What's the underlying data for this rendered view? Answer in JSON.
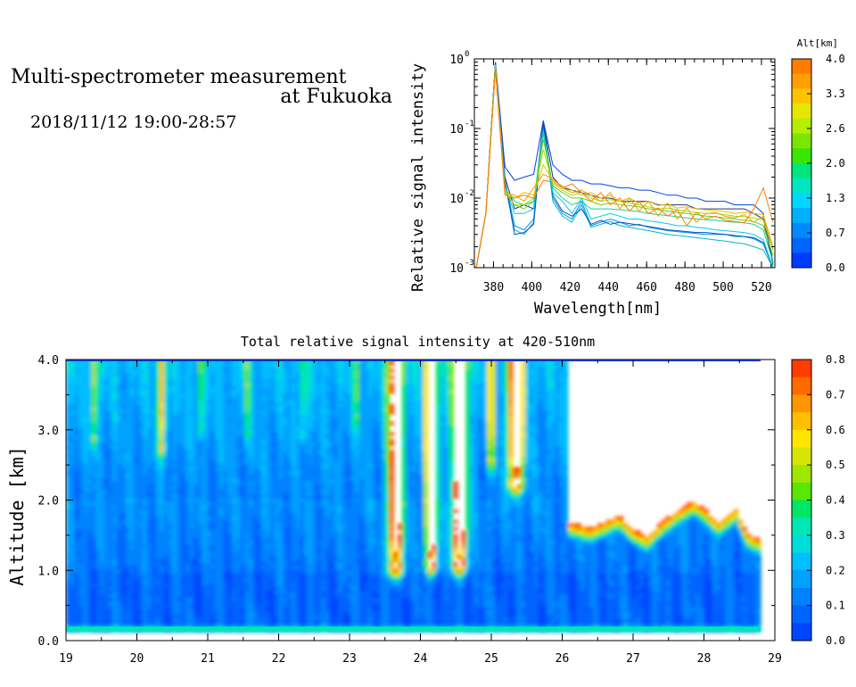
{
  "header": {
    "title_line1": "Multi-spectrometer measurement",
    "title_line2": "at Fukuoka",
    "datetime": "2018/11/12 19:00-28:57"
  },
  "chart_data": [
    {
      "type": "line",
      "xlabel": "Wavelength[nm]",
      "ylabel": "Relative signal intensity",
      "xlim": [
        370,
        527
      ],
      "ylim": [
        0.001,
        1
      ],
      "yscale": "log",
      "x_ticks": [
        "380",
        "400",
        "420",
        "440",
        "460",
        "480",
        "500",
        "520"
      ],
      "y_ticks": [
        "10",
        "10",
        "10",
        "10"
      ],
      "y_tick_exponents": [
        "0",
        "-1",
        "-2",
        "-3"
      ],
      "colorbar": {
        "title": "Alt[km]",
        "labels": [
          "4.0",
          "3.3",
          "2.6",
          "2.0",
          "1.3",
          "0.7",
          "0.0"
        ],
        "colors": [
          "#ff7c00",
          "#ffa000",
          "#ffc400",
          "#e6e600",
          "#b4ee00",
          "#7ae600",
          "#38e600",
          "#00e67a",
          "#00e6c0",
          "#00d6ff",
          "#00b0ff",
          "#008aff",
          "#0064ff",
          "#003cff"
        ]
      },
      "x": [
        371,
        376,
        381,
        386,
        391,
        396,
        401,
        406,
        411,
        416,
        421,
        426,
        431,
        436,
        441,
        446,
        451,
        456,
        461,
        466,
        471,
        476,
        481,
        486,
        491,
        496,
        501,
        506,
        511,
        516,
        521,
        526
      ],
      "series": [
        {
          "color": "#0044ee",
          "values": [
            0.001,
            0.006,
            0.9,
            0.028,
            0.018,
            0.02,
            0.022,
            0.13,
            0.03,
            0.022,
            0.018,
            0.018,
            0.016,
            0.016,
            0.015,
            0.014,
            0.014,
            0.013,
            0.013,
            0.012,
            0.011,
            0.011,
            0.01,
            0.01,
            0.009,
            0.009,
            0.009,
            0.008,
            0.008,
            0.008,
            0.006,
            0.0012
          ]
        },
        {
          "color": "#223388",
          "values": [
            0.001,
            0.006,
            0.9,
            0.02,
            0.007,
            0.008,
            0.007,
            0.125,
            0.02,
            0.014,
            0.013,
            0.012,
            0.011,
            0.01,
            0.01,
            0.009,
            0.009,
            0.009,
            0.009,
            0.008,
            0.008,
            0.008,
            0.008,
            0.007,
            0.007,
            0.007,
            0.007,
            0.007,
            0.007,
            0.006,
            0.005,
            0.0011
          ]
        },
        {
          "color": "#0090f0",
          "values": [
            0.001,
            0.006,
            0.85,
            0.018,
            0.004,
            0.0035,
            0.005,
            0.115,
            0.01,
            0.006,
            0.005,
            0.009,
            0.004,
            0.0045,
            0.005,
            0.0045,
            0.004,
            0.0042,
            0.0038,
            0.0036,
            0.0034,
            0.0033,
            0.0032,
            0.0031,
            0.003,
            0.003,
            0.003,
            0.0028,
            0.0028,
            0.0026,
            0.0022,
            0.001
          ]
        },
        {
          "color": "#00b8c8",
          "values": [
            0.001,
            0.006,
            0.85,
            0.016,
            0.0035,
            0.003,
            0.0045,
            0.11,
            0.009,
            0.0055,
            0.0045,
            0.008,
            0.0038,
            0.0042,
            0.0046,
            0.004,
            0.0038,
            0.0036,
            0.0034,
            0.0032,
            0.003,
            0.0029,
            0.0028,
            0.0027,
            0.0026,
            0.0025,
            0.0024,
            0.0023,
            0.0022,
            0.002,
            0.0018,
            0.001
          ]
        },
        {
          "color": "#0050c8",
          "values": [
            0.001,
            0.006,
            0.88,
            0.018,
            0.003,
            0.0032,
            0.0042,
            0.12,
            0.011,
            0.0065,
            0.0055,
            0.007,
            0.0042,
            0.0048,
            0.0042,
            0.0045,
            0.0043,
            0.0041,
            0.0039,
            0.0037,
            0.0035,
            0.0034,
            0.0033,
            0.0032,
            0.0032,
            0.0031,
            0.003,
            0.0029,
            0.0028,
            0.0027,
            0.0023,
            0.001
          ]
        },
        {
          "color": "#00ccee",
          "values": [
            0.001,
            0.006,
            0.8,
            0.015,
            0.006,
            0.006,
            0.007,
            0.085,
            0.012,
            0.009,
            0.006,
            0.01,
            0.005,
            0.0055,
            0.006,
            0.0055,
            0.005,
            0.005,
            0.0047,
            0.0045,
            0.0043,
            0.004,
            0.004,
            0.0038,
            0.0037,
            0.0035,
            0.0034,
            0.0033,
            0.0032,
            0.003,
            0.0025,
            0.001
          ]
        },
        {
          "color": "#20d090",
          "values": [
            0.001,
            0.006,
            0.82,
            0.014,
            0.009,
            0.008,
            0.009,
            0.095,
            0.014,
            0.01,
            0.008,
            0.009,
            0.007,
            0.007,
            0.007,
            0.0068,
            0.0066,
            0.0064,
            0.006,
            0.0058,
            0.0056,
            0.0054,
            0.0052,
            0.005,
            0.0049,
            0.0048,
            0.0046,
            0.0045,
            0.0044,
            0.0042,
            0.0035,
            0.0012
          ]
        },
        {
          "color": "#60d020",
          "values": [
            0.001,
            0.006,
            0.8,
            0.013,
            0.008,
            0.007,
            0.009,
            0.07,
            0.015,
            0.012,
            0.01,
            0.01,
            0.009,
            0.008,
            0.0085,
            0.008,
            0.0078,
            0.0075,
            0.007,
            0.0068,
            0.0065,
            0.0062,
            0.006,
            0.0058,
            0.0055,
            0.0054,
            0.0052,
            0.005,
            0.0048,
            0.0046,
            0.004,
            0.0015
          ]
        },
        {
          "color": "#a8d800",
          "values": [
            0.001,
            0.006,
            0.78,
            0.012,
            0.008,
            0.008,
            0.01,
            0.05,
            0.016,
            0.013,
            0.011,
            0.012,
            0.01,
            0.009,
            0.0095,
            0.009,
            0.0085,
            0.008,
            0.0075,
            0.007,
            0.0072,
            0.0068,
            0.0065,
            0.0062,
            0.006,
            0.006,
            0.0058,
            0.0055,
            0.0054,
            0.0052,
            0.0048,
            0.0018
          ]
        },
        {
          "color": "#e0c000",
          "values": [
            0.001,
            0.006,
            0.75,
            0.013,
            0.01,
            0.012,
            0.011,
            0.03,
            0.018,
            0.015,
            0.013,
            0.011,
            0.012,
            0.01,
            0.011,
            0.009,
            0.01,
            0.0085,
            0.009,
            0.0078,
            0.0082,
            0.0072,
            0.0075,
            0.007,
            0.0068,
            0.0066,
            0.0064,
            0.006,
            0.0062,
            0.006,
            0.0058,
            0.002
          ]
        },
        {
          "color": "#f0a000",
          "values": [
            0.001,
            0.006,
            0.72,
            0.012,
            0.011,
            0.009,
            0.014,
            0.022,
            0.019,
            0.014,
            0.012,
            0.013,
            0.011,
            0.009,
            0.012,
            0.007,
            0.01,
            0.0065,
            0.009,
            0.0055,
            0.0085,
            0.005,
            0.0072,
            0.0045,
            0.006,
            0.0062,
            0.0055,
            0.0052,
            0.0058,
            0.0045,
            0.0055,
            0.0018
          ]
        },
        {
          "color": "#ff7c00",
          "values": [
            0.001,
            0.006,
            0.7,
            0.011,
            0.01,
            0.011,
            0.01,
            0.018,
            0.017,
            0.014,
            0.016,
            0.012,
            0.009,
            0.012,
            0.008,
            0.01,
            0.0065,
            0.009,
            0.006,
            0.0072,
            0.0055,
            0.0068,
            0.004,
            0.0062,
            0.005,
            0.0055,
            0.0048,
            0.0046,
            0.0044,
            0.007,
            0.014,
            0.0045
          ]
        }
      ]
    },
    {
      "type": "heatmap",
      "title": "Total relative signal intensity at 420-510nm",
      "ylabel": "Altitude [km]",
      "xlabel": "",
      "xlim": [
        19,
        29
      ],
      "ylim": [
        0,
        4
      ],
      "x_ticks": [
        "19",
        "20",
        "21",
        "22",
        "23",
        "24",
        "25",
        "26",
        "27",
        "28",
        "29"
      ],
      "y_ticks": [
        "0.0",
        "1.0",
        "2.0",
        "3.0",
        "4.0"
      ],
      "data_end_time": 28.8,
      "colorbar": {
        "labels": [
          "0.8",
          "0.7",
          "0.6",
          "0.5",
          "0.4",
          "0.3",
          "0.2",
          "0.1",
          "0.0"
        ],
        "colors": [
          "#ff3c00",
          "#ff6a00",
          "#ff9600",
          "#ffbe00",
          "#ffe600",
          "#d6e600",
          "#a0e600",
          "#5ae600",
          "#00e664",
          "#00e6b4",
          "#00dcdc",
          "#00beff",
          "#00a0ff",
          "#0082ff",
          "#0064ff",
          "#0046ff"
        ]
      },
      "plumes": [
        {
          "t": 19.4,
          "width": 0.05,
          "base": 2.9,
          "peak": 0.32
        },
        {
          "t": 20.35,
          "width": 0.06,
          "base": 2.8,
          "peak": 0.42
        },
        {
          "t": 20.9,
          "width": 0.05,
          "base": 3.1,
          "peak": 0.22
        },
        {
          "t": 21.55,
          "width": 0.05,
          "base": 3.0,
          "peak": 0.2
        },
        {
          "t": 22.35,
          "width": 0.05,
          "base": 3.0,
          "peak": 0.2
        },
        {
          "t": 23.1,
          "width": 0.05,
          "base": 3.2,
          "peak": 0.2
        },
        {
          "t": 23.65,
          "width": 0.1,
          "base": 1.1,
          "peak": 0.9
        },
        {
          "t": 24.15,
          "width": 0.08,
          "base": 1.15,
          "peak": 1.0
        },
        {
          "t": 24.55,
          "width": 0.1,
          "base": 1.15,
          "peak": 1.0
        },
        {
          "t": 25.0,
          "width": 0.05,
          "base": 2.6,
          "peak": 0.45
        },
        {
          "t": 25.35,
          "width": 0.1,
          "base": 2.3,
          "peak": 0.95
        }
      ],
      "saturated_region": {
        "t_start": 26.1,
        "t_end": 28.8
      },
      "cloud_base": [
        {
          "t": 26.0,
          "alt": 2.5
        },
        {
          "t": 26.1,
          "alt": 1.7
        },
        {
          "t": 26.4,
          "alt": 1.62
        },
        {
          "t": 26.8,
          "alt": 1.8
        },
        {
          "t": 27.0,
          "alt": 1.6
        },
        {
          "t": 27.2,
          "alt": 1.5
        },
        {
          "t": 27.4,
          "alt": 1.7
        },
        {
          "t": 27.6,
          "alt": 1.85
        },
        {
          "t": 27.85,
          "alt": 2.0
        },
        {
          "t": 28.0,
          "alt": 1.9
        },
        {
          "t": 28.2,
          "alt": 1.7
        },
        {
          "t": 28.45,
          "alt": 1.9
        },
        {
          "t": 28.6,
          "alt": 1.55
        },
        {
          "t": 28.8,
          "alt": 1.45
        }
      ]
    }
  ]
}
